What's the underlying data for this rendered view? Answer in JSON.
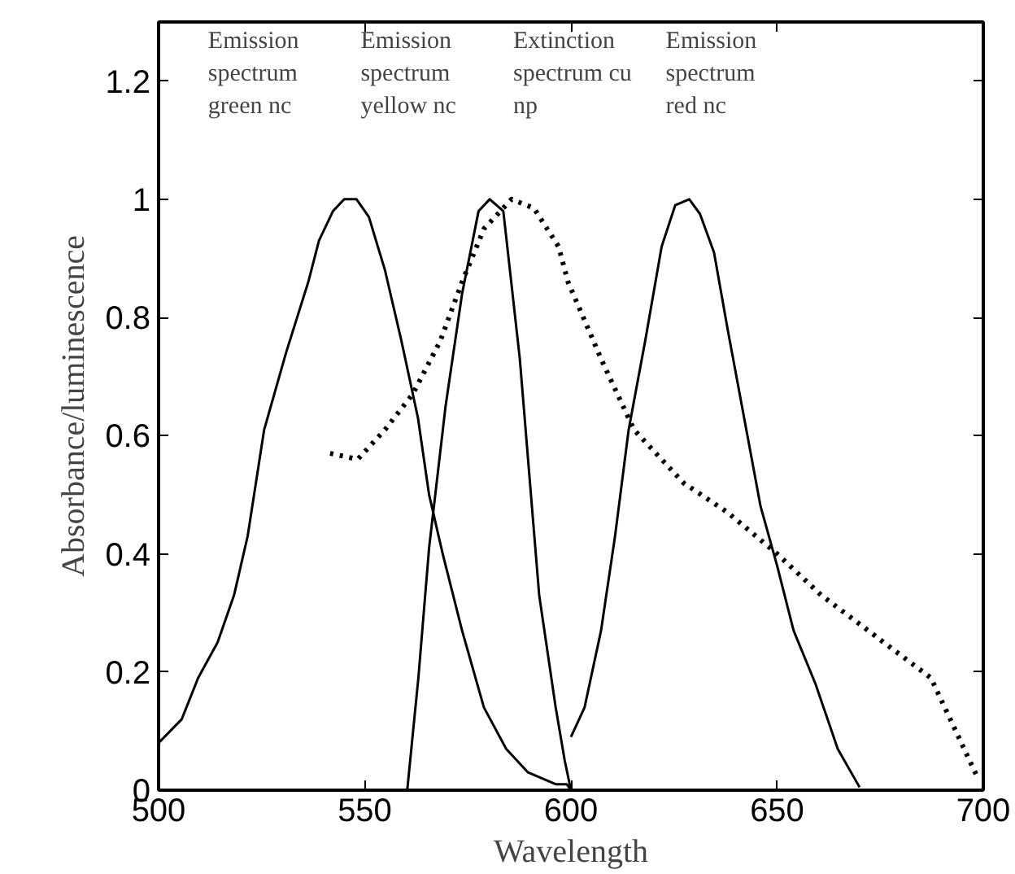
{
  "chart_data": {
    "type": "line",
    "xlabel": "Wavelength",
    "ylabel": "Absorbance/luminescence",
    "xlim": [
      500,
      700
    ],
    "ylim": [
      0,
      1.3
    ],
    "xticks": [
      500,
      550,
      600,
      650,
      700
    ],
    "yticks": [
      0,
      0.2,
      0.4,
      0.6,
      0.8,
      1,
      1.2
    ],
    "grid": false,
    "marker": "none",
    "annotations": [
      "Emission\nspectrum\ngreen nc",
      "Emission\nspectrum\nyellow nc",
      "Extinction\nspectrum cu\nnp",
      "Emission\nspectrum\nred nc"
    ],
    "series": [
      {
        "color": "#000000",
        "line_style": "solid",
        "x": [
          500,
          505.6,
          509.6,
          514.3,
          518.3,
          521.6,
          525.6,
          530.9,
          536.3,
          538.9,
          542.3,
          545,
          548,
          551,
          554.9,
          558.9,
          562.9,
          565.6,
          568.9,
          573.6,
          578.9,
          584.3,
          589.6,
          596.3,
          599,
          600
        ],
        "values": [
          0.08,
          0.12,
          0.19,
          0.25,
          0.33,
          0.43,
          0.61,
          0.74,
          0.86,
          0.93,
          0.98,
          1.0,
          1.0,
          0.97,
          0.88,
          0.76,
          0.63,
          0.5,
          0.4,
          0.27,
          0.14,
          0.07,
          0.03,
          0.01,
          0.01,
          0
        ]
      },
      {
        "color": "#000000",
        "line_style": "solid",
        "x": [
          560.3,
          563,
          565.6,
          569.6,
          573.6,
          577.6,
          580.3,
          583.6,
          587.6,
          592.3,
          596.3,
          598.5,
          600
        ],
        "values": [
          0,
          0.19,
          0.41,
          0.65,
          0.84,
          0.98,
          1.0,
          0.98,
          0.73,
          0.33,
          0.14,
          0.05,
          0
        ]
      },
      {
        "color": "#000000",
        "line_style": "dotted",
        "x": [
          541.6,
          548.3,
          554.9,
          561.6,
          568.3,
          573.6,
          578.9,
          585.6,
          591,
          597,
          599.3,
          607.3,
          615.3,
          627.3,
          638,
          650,
          660.7,
          674,
          687.3,
          698.7
        ],
        "values": [
          0.57,
          0.56,
          0.61,
          0.67,
          0.76,
          0.86,
          0.95,
          1.0,
          0.985,
          0.92,
          0.86,
          0.73,
          0.61,
          0.52,
          0.47,
          0.4,
          0.33,
          0.26,
          0.19,
          0.02
        ]
      },
      {
        "color": "#000000",
        "line_style": "solid",
        "x": [
          600,
          603.3,
          607.3,
          610.7,
          614,
          618,
          622,
          625.3,
          628.7,
          631.3,
          634.7,
          638,
          642,
          646,
          650,
          654,
          659.3,
          664.7,
          670
        ],
        "values": [
          0.09,
          0.14,
          0.27,
          0.43,
          0.61,
          0.76,
          0.92,
          0.99,
          1.0,
          0.975,
          0.91,
          0.78,
          0.63,
          0.48,
          0.38,
          0.27,
          0.18,
          0.07,
          0.005
        ]
      }
    ]
  }
}
